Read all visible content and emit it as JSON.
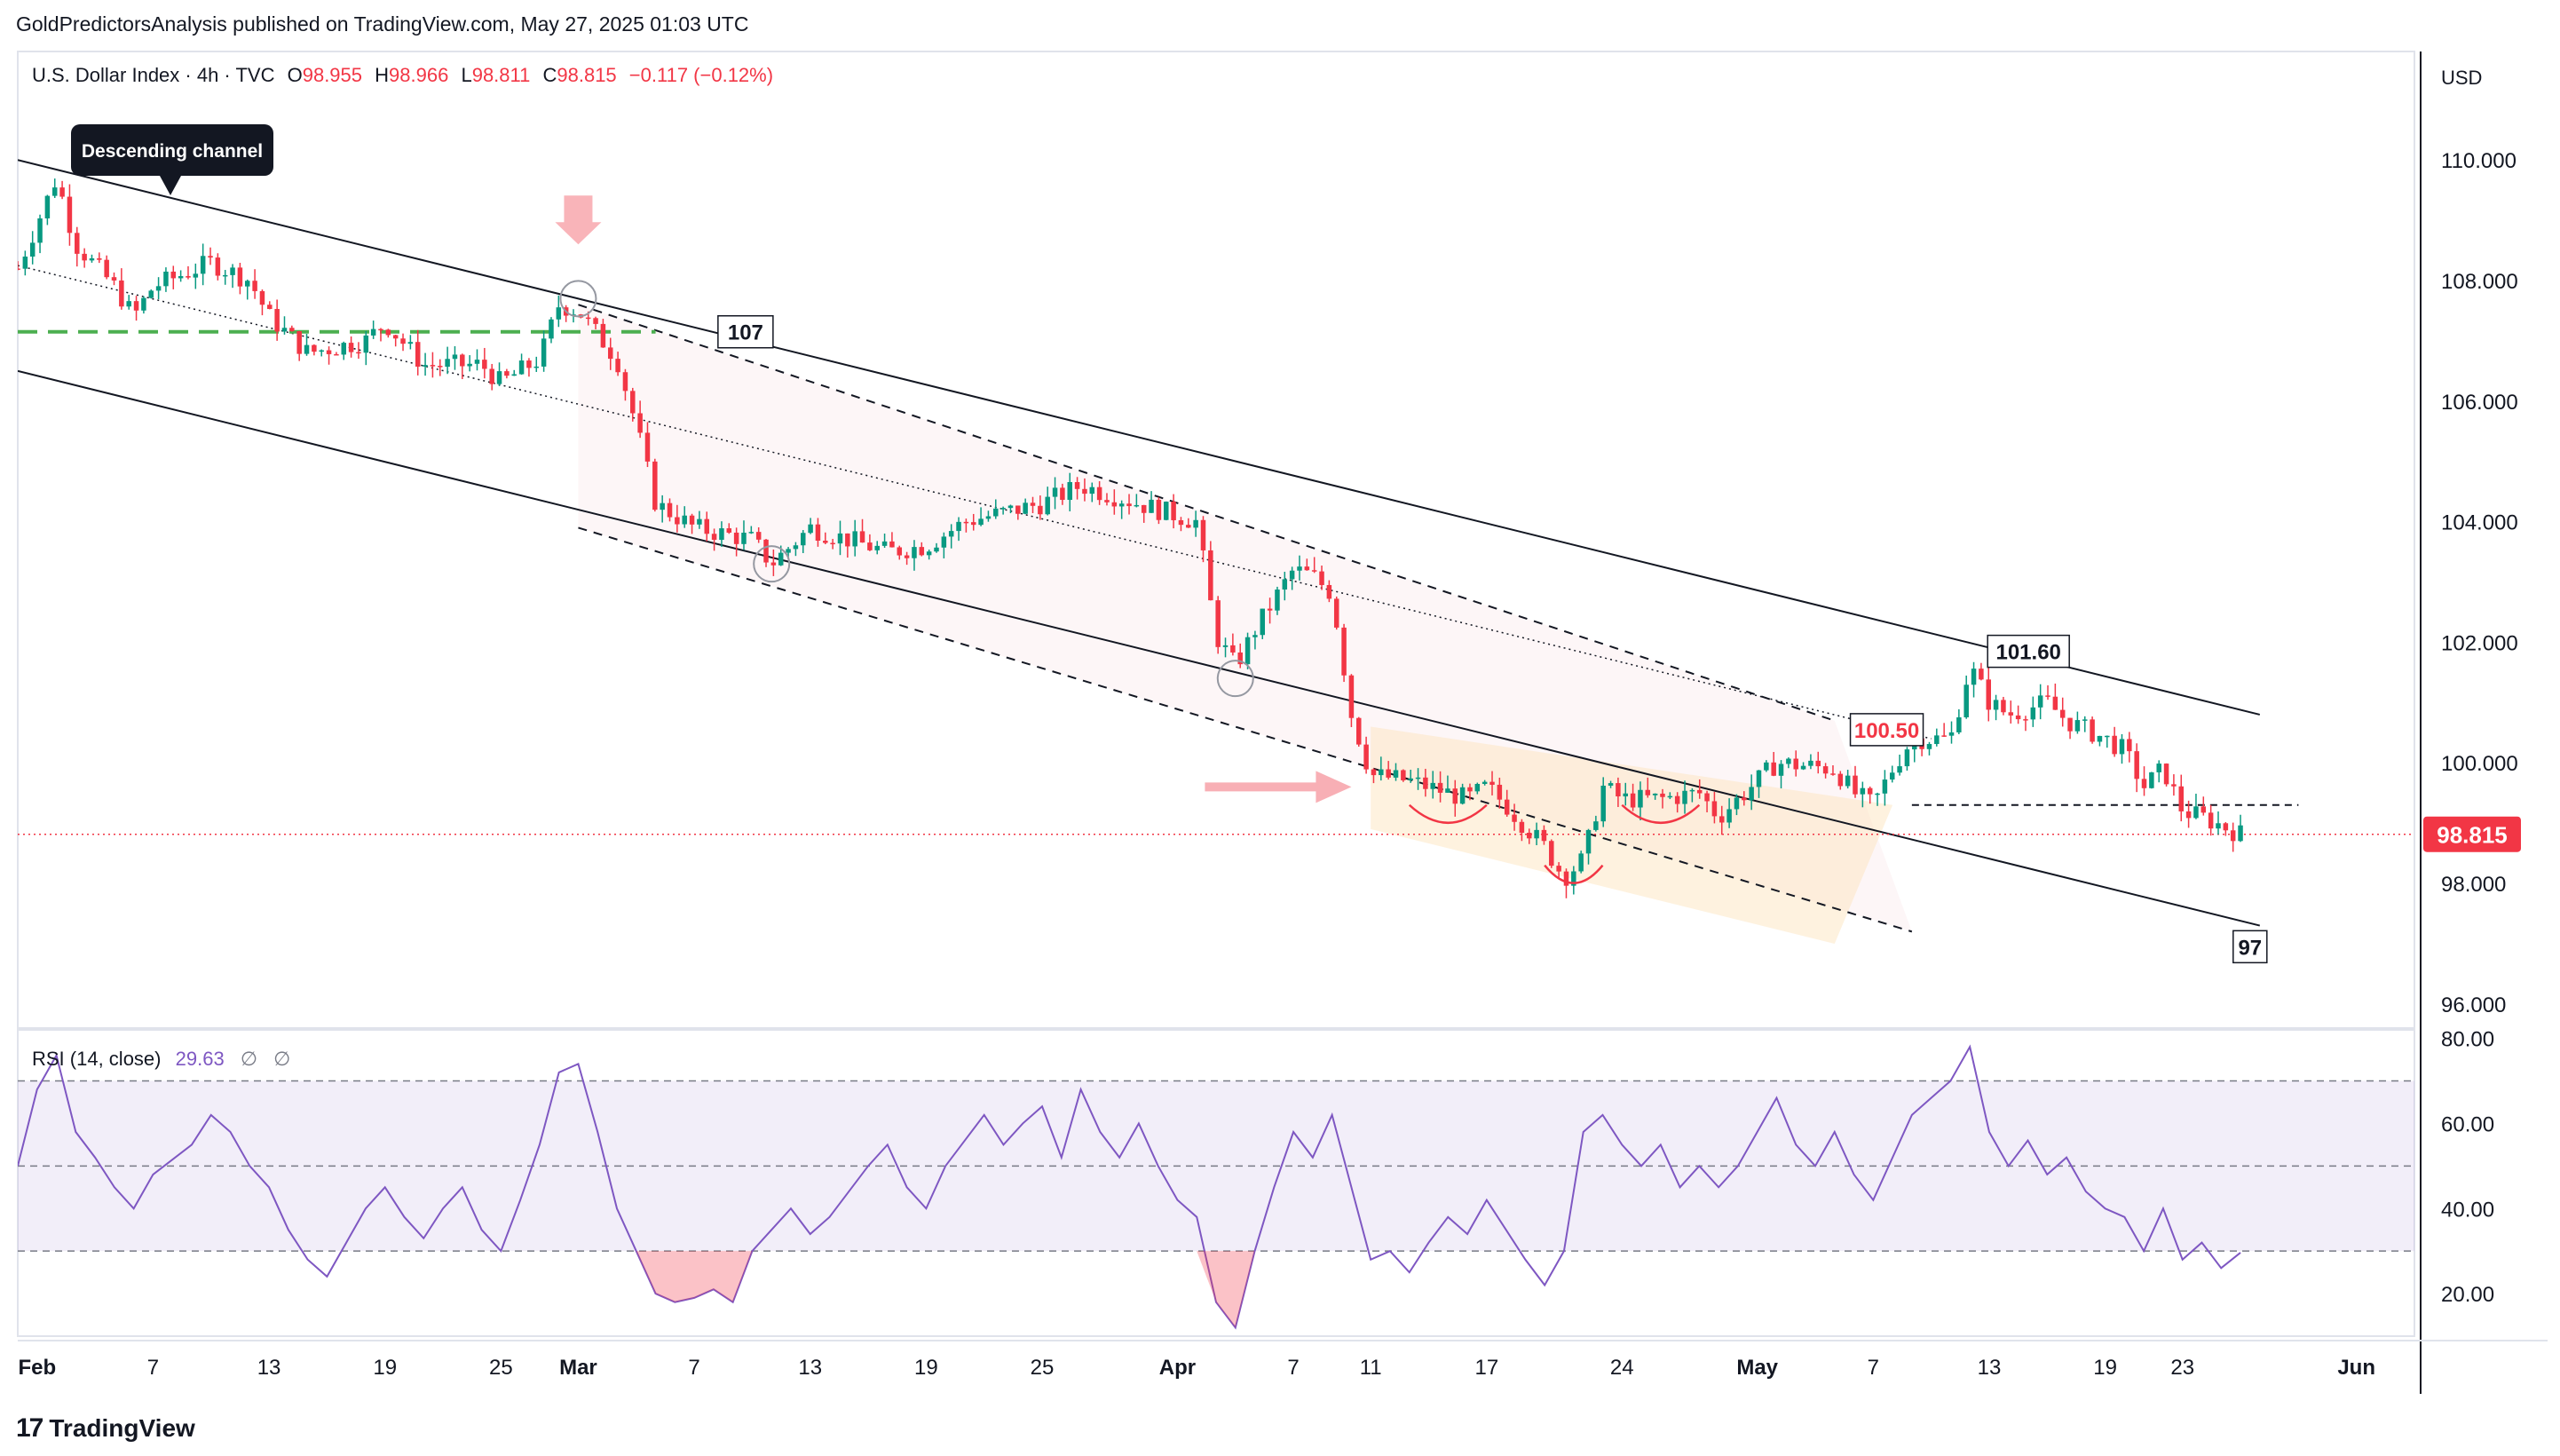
{
  "header": {
    "published": "GoldPredictorsAnalysis published on TradingView.com, May 27, 2025 01:03 UTC"
  },
  "footer": {
    "brand": "TradingView",
    "logo_glyph": "17"
  },
  "chart_data": [
    {
      "type": "candlestick",
      "symbol_line": {
        "symbol": "U.S. Dollar Index · 4h · TVC",
        "open_label": "O",
        "open": "98.955",
        "high_label": "H",
        "high": "98.966",
        "low_label": "L",
        "low": "98.811",
        "close_label": "C",
        "close": "98.815",
        "change": "−0.117 (−0.12%)"
      },
      "currency": "USD",
      "last_price": "98.815",
      "last_price_color": "#f23645",
      "up_color": "#089981",
      "down_color": "#f23645",
      "ylim": [
        95.6,
        111.8
      ],
      "y_ticks": [
        "110.000",
        "108.000",
        "106.000",
        "104.000",
        "102.000",
        "100.000",
        "98.000",
        "96.000"
      ],
      "y_tick_values": [
        110,
        108,
        106,
        104,
        102,
        100,
        98,
        96
      ],
      "x_range": [
        "2025-01-31",
        "2025-06-04"
      ],
      "x_ticks": [
        {
          "label": "Feb",
          "date": "2025-02-01",
          "bold": true
        },
        {
          "label": "7",
          "date": "2025-02-07",
          "bold": false
        },
        {
          "label": "13",
          "date": "2025-02-13",
          "bold": false
        },
        {
          "label": "19",
          "date": "2025-02-19",
          "bold": false
        },
        {
          "label": "25",
          "date": "2025-02-25",
          "bold": false
        },
        {
          "label": "Mar",
          "date": "2025-03-01",
          "bold": true
        },
        {
          "label": "7",
          "date": "2025-03-07",
          "bold": false
        },
        {
          "label": "13",
          "date": "2025-03-13",
          "bold": false
        },
        {
          "label": "19",
          "date": "2025-03-19",
          "bold": false
        },
        {
          "label": "25",
          "date": "2025-03-25",
          "bold": false
        },
        {
          "label": "Apr",
          "date": "2025-04-01",
          "bold": true
        },
        {
          "label": "7",
          "date": "2025-04-07",
          "bold": false
        },
        {
          "label": "11",
          "date": "2025-04-11",
          "bold": false
        },
        {
          "label": "17",
          "date": "2025-04-17",
          "bold": false
        },
        {
          "label": "24",
          "date": "2025-04-24",
          "bold": false
        },
        {
          "label": "May",
          "date": "2025-05-01",
          "bold": true
        },
        {
          "label": "7",
          "date": "2025-05-07",
          "bold": false
        },
        {
          "label": "13",
          "date": "2025-05-13",
          "bold": false
        },
        {
          "label": "19",
          "date": "2025-05-19",
          "bold": false
        },
        {
          "label": "23",
          "date": "2025-05-23",
          "bold": false
        },
        {
          "label": "Jun",
          "date": "2025-06-01",
          "bold": true
        }
      ],
      "price_path": [
        [
          "2025-01-31",
          108.2
        ],
        [
          "2025-02-02",
          109.7
        ],
        [
          "2025-02-03",
          108.6
        ],
        [
          "2025-02-05",
          107.9
        ],
        [
          "2025-02-06",
          107.4
        ],
        [
          "2025-02-07",
          107.9
        ],
        [
          "2025-02-10",
          108.3
        ],
        [
          "2025-02-12",
          108.0
        ],
        [
          "2025-02-13",
          107.4
        ],
        [
          "2025-02-15",
          106.8
        ],
        [
          "2025-02-18",
          107.0
        ],
        [
          "2025-02-19",
          107.3
        ],
        [
          "2025-02-21",
          106.6
        ],
        [
          "2025-02-24",
          106.6
        ],
        [
          "2025-02-25",
          106.3
        ],
        [
          "2025-02-27",
          106.7
        ],
        [
          "2025-02-28",
          107.6
        ],
        [
          "2025-03-01",
          107.5
        ],
        [
          "2025-03-03",
          106.7
        ],
        [
          "2025-03-04",
          105.6
        ],
        [
          "2025-03-05",
          104.3
        ],
        [
          "2025-03-07",
          103.9
        ],
        [
          "2025-03-10",
          103.7
        ],
        [
          "2025-03-11",
          103.3
        ],
        [
          "2025-03-13",
          103.9
        ],
        [
          "2025-03-17",
          103.5
        ],
        [
          "2025-03-19",
          103.6
        ],
        [
          "2025-03-21",
          104.0
        ],
        [
          "2025-03-25",
          104.3
        ],
        [
          "2025-03-27",
          104.6
        ],
        [
          "2025-03-31",
          104.2
        ],
        [
          "2025-04-02",
          104.0
        ],
        [
          "2025-04-03",
          102.1
        ],
        [
          "2025-04-04",
          101.6
        ],
        [
          "2025-04-05",
          102.2
        ],
        [
          "2025-04-07",
          103.2
        ],
        [
          "2025-04-08",
          103.1
        ],
        [
          "2025-04-09",
          102.8
        ],
        [
          "2025-04-10",
          100.8
        ],
        [
          "2025-04-11",
          99.8
        ],
        [
          "2025-04-13",
          99.7
        ],
        [
          "2025-04-14",
          99.6
        ],
        [
          "2025-04-16",
          99.4
        ],
        [
          "2025-04-17",
          99.6
        ],
        [
          "2025-04-18",
          99.3
        ],
        [
          "2025-04-20",
          98.6
        ],
        [
          "2025-04-21",
          98.1
        ],
        [
          "2025-04-22",
          98.4
        ],
        [
          "2025-04-23",
          99.6
        ],
        [
          "2025-04-24",
          99.4
        ],
        [
          "2025-04-26",
          99.4
        ],
        [
          "2025-04-28",
          99.5
        ],
        [
          "2025-04-29",
          99.1
        ],
        [
          "2025-04-30",
          99.4
        ],
        [
          "2025-05-02",
          100.0
        ],
        [
          "2025-05-05",
          99.9
        ],
        [
          "2025-05-06",
          99.5
        ],
        [
          "2025-05-07",
          99.3
        ],
        [
          "2025-05-08",
          99.9
        ],
        [
          "2025-05-09",
          100.4
        ],
        [
          "2025-05-11",
          100.4
        ],
        [
          "2025-05-12",
          101.6
        ],
        [
          "2025-05-13",
          101.0
        ],
        [
          "2025-05-14",
          100.8
        ],
        [
          "2025-05-15",
          100.9
        ],
        [
          "2025-05-16",
          101.0
        ],
        [
          "2025-05-17",
          100.7
        ],
        [
          "2025-05-19",
          100.4
        ],
        [
          "2025-05-20",
          100.2
        ],
        [
          "2025-05-21",
          99.6
        ],
        [
          "2025-05-22",
          99.9
        ],
        [
          "2025-05-23",
          99.2
        ],
        [
          "2025-05-24",
          99.1
        ],
        [
          "2025-05-26",
          98.82
        ]
      ],
      "annotations": {
        "callout": "Descending channel",
        "level_107": "107",
        "level_101_60": "101.60",
        "level_100_50": "100.50",
        "level_97": "97"
      },
      "channel_upper": [
        [
          "2025-01-31",
          110.0
        ],
        [
          "2025-05-27",
          100.8
        ]
      ],
      "channel_lower": [
        [
          "2025-01-31",
          106.5
        ],
        [
          "2025-05-27",
          97.3
        ]
      ],
      "channel_mid": [
        [
          "2025-01-31",
          108.25
        ],
        [
          "2025-05-10",
          100.4
        ]
      ],
      "dashed_upper": [
        [
          "2025-03-01",
          107.6
        ],
        [
          "2025-05-05",
          100.7
        ]
      ],
      "dashed_lower": [
        [
          "2025-03-01",
          103.9
        ],
        [
          "2025-05-09",
          97.2
        ]
      ],
      "horizontal_107": {
        "from": "2025-01-31",
        "to": "2025-03-05",
        "value": 107.15
      },
      "horizontal_99_3": {
        "from": "2025-05-09",
        "to": "2025-05-29",
        "value": 99.3
      }
    },
    {
      "type": "line",
      "title": "RSI (14, close)",
      "value": "29.63",
      "extra_marks": [
        "∅",
        "∅"
      ],
      "line_color": "#7e57c2",
      "band_color": "#7e57c2",
      "ylim": [
        10,
        82
      ],
      "y_ticks": [
        "80.00",
        "60.00",
        "40.00",
        "20.00"
      ],
      "y_tick_values": [
        80,
        60,
        40,
        20
      ],
      "levels": [
        70,
        50,
        30
      ],
      "rsi_path": [
        [
          "2025-01-31",
          50
        ],
        [
          "2025-02-01",
          68
        ],
        [
          "2025-02-02",
          76
        ],
        [
          "2025-02-03",
          58
        ],
        [
          "2025-02-04",
          52
        ],
        [
          "2025-02-05",
          45
        ],
        [
          "2025-02-06",
          40
        ],
        [
          "2025-02-07",
          48
        ],
        [
          "2025-02-09",
          55
        ],
        [
          "2025-02-10",
          62
        ],
        [
          "2025-02-11",
          58
        ],
        [
          "2025-02-12",
          50
        ],
        [
          "2025-02-13",
          45
        ],
        [
          "2025-02-14",
          35
        ],
        [
          "2025-02-15",
          28
        ],
        [
          "2025-02-16",
          24
        ],
        [
          "2025-02-17",
          32
        ],
        [
          "2025-02-18",
          40
        ],
        [
          "2025-02-19",
          45
        ],
        [
          "2025-02-20",
          38
        ],
        [
          "2025-02-21",
          33
        ],
        [
          "2025-02-22",
          40
        ],
        [
          "2025-02-23",
          45
        ],
        [
          "2025-02-24",
          35
        ],
        [
          "2025-02-25",
          30
        ],
        [
          "2025-02-26",
          42
        ],
        [
          "2025-02-27",
          55
        ],
        [
          "2025-02-28",
          72
        ],
        [
          "2025-03-01",
          74
        ],
        [
          "2025-03-02",
          58
        ],
        [
          "2025-03-03",
          40
        ],
        [
          "2025-03-04",
          30
        ],
        [
          "2025-03-05",
          20
        ],
        [
          "2025-03-06",
          18
        ],
        [
          "2025-03-07",
          19
        ],
        [
          "2025-03-08",
          21
        ],
        [
          "2025-03-09",
          18
        ],
        [
          "2025-03-10",
          30
        ],
        [
          "2025-03-11",
          35
        ],
        [
          "2025-03-12",
          40
        ],
        [
          "2025-03-13",
          34
        ],
        [
          "2025-03-14",
          38
        ],
        [
          "2025-03-15",
          44
        ],
        [
          "2025-03-16",
          50
        ],
        [
          "2025-03-17",
          55
        ],
        [
          "2025-03-18",
          45
        ],
        [
          "2025-03-19",
          40
        ],
        [
          "2025-03-20",
          50
        ],
        [
          "2025-03-21",
          56
        ],
        [
          "2025-03-22",
          62
        ],
        [
          "2025-03-23",
          55
        ],
        [
          "2025-03-24",
          60
        ],
        [
          "2025-03-25",
          64
        ],
        [
          "2025-03-26",
          52
        ],
        [
          "2025-03-27",
          68
        ],
        [
          "2025-03-28",
          58
        ],
        [
          "2025-03-29",
          52
        ],
        [
          "2025-03-30",
          60
        ],
        [
          "2025-03-31",
          50
        ],
        [
          "2025-04-01",
          42
        ],
        [
          "2025-04-02",
          38
        ],
        [
          "2025-04-03",
          18
        ],
        [
          "2025-04-04",
          12
        ],
        [
          "2025-04-05",
          30
        ],
        [
          "2025-04-06",
          45
        ],
        [
          "2025-04-07",
          58
        ],
        [
          "2025-04-08",
          52
        ],
        [
          "2025-04-09",
          62
        ],
        [
          "2025-04-10",
          45
        ],
        [
          "2025-04-11",
          28
        ],
        [
          "2025-04-12",
          30
        ],
        [
          "2025-04-13",
          25
        ],
        [
          "2025-04-14",
          32
        ],
        [
          "2025-04-15",
          38
        ],
        [
          "2025-04-16",
          34
        ],
        [
          "2025-04-17",
          42
        ],
        [
          "2025-04-18",
          35
        ],
        [
          "2025-04-19",
          28
        ],
        [
          "2025-04-20",
          22
        ],
        [
          "2025-04-21",
          30
        ],
        [
          "2025-04-22",
          58
        ],
        [
          "2025-04-23",
          62
        ],
        [
          "2025-04-24",
          55
        ],
        [
          "2025-04-25",
          50
        ],
        [
          "2025-04-26",
          55
        ],
        [
          "2025-04-27",
          45
        ],
        [
          "2025-04-28",
          50
        ],
        [
          "2025-04-29",
          45
        ],
        [
          "2025-04-30",
          50
        ],
        [
          "2025-05-01",
          58
        ],
        [
          "2025-05-02",
          66
        ],
        [
          "2025-05-03",
          55
        ],
        [
          "2025-05-04",
          50
        ],
        [
          "2025-05-05",
          58
        ],
        [
          "2025-05-06",
          48
        ],
        [
          "2025-05-07",
          42
        ],
        [
          "2025-05-08",
          52
        ],
        [
          "2025-05-09",
          62
        ],
        [
          "2025-05-10",
          66
        ],
        [
          "2025-05-11",
          70
        ],
        [
          "2025-05-12",
          78
        ],
        [
          "2025-05-13",
          58
        ],
        [
          "2025-05-14",
          50
        ],
        [
          "2025-05-15",
          56
        ],
        [
          "2025-05-16",
          48
        ],
        [
          "2025-05-17",
          52
        ],
        [
          "2025-05-18",
          44
        ],
        [
          "2025-05-19",
          40
        ],
        [
          "2025-05-20",
          38
        ],
        [
          "2025-05-21",
          30
        ],
        [
          "2025-05-22",
          40
        ],
        [
          "2025-05-23",
          28
        ],
        [
          "2025-05-24",
          32
        ],
        [
          "2025-05-25",
          26
        ],
        [
          "2025-05-26",
          29.63
        ]
      ]
    }
  ]
}
